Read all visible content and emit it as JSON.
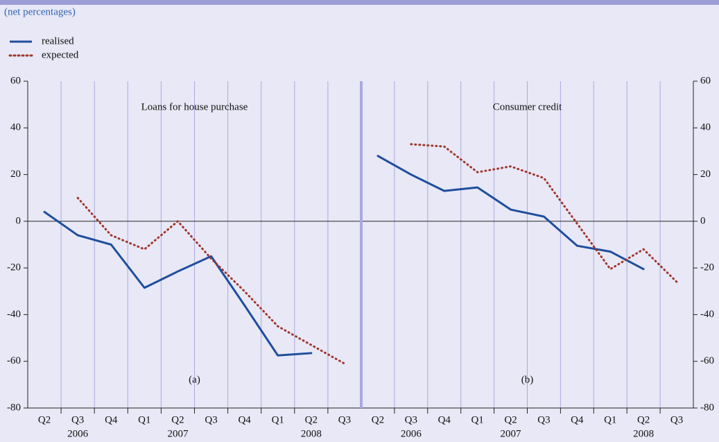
{
  "subtitle": "(net percentages)",
  "chart_data": [
    {
      "type": "line",
      "title": "Loans for house purchase",
      "panel_label": "(a)",
      "categories": [
        "Q2",
        "Q3",
        "Q4",
        "Q1",
        "Q2",
        "Q3",
        "Q4",
        "Q1",
        "Q2",
        "Q3"
      ],
      "years": [
        null,
        "2006",
        null,
        null,
        "2007",
        null,
        null,
        null,
        "2008",
        null
      ],
      "ylim": [
        -80,
        60
      ],
      "yticks": [
        -80,
        -60,
        -40,
        -20,
        0,
        20,
        40,
        60
      ],
      "y_axis": "left",
      "series": [
        {
          "name": "realised",
          "color": "#1f4e9c",
          "style": "solid",
          "values": [
            4,
            -6,
            -10,
            -28.5,
            -21.5,
            -15,
            -36,
            -57.5,
            -56.5,
            null
          ]
        },
        {
          "name": "expected",
          "color": "#a0352a",
          "style": "dotted",
          "values": [
            null,
            10,
            -6,
            -12,
            0,
            -16,
            -30,
            -45,
            -53,
            -61
          ]
        }
      ]
    },
    {
      "type": "line",
      "title": "Consumer credit",
      "panel_label": "(b)",
      "categories": [
        "Q2",
        "Q3",
        "Q4",
        "Q1",
        "Q2",
        "Q3",
        "Q4",
        "Q1",
        "Q2",
        "Q3"
      ],
      "years": [
        null,
        "2006",
        null,
        null,
        "2007",
        null,
        null,
        null,
        "2008",
        null
      ],
      "ylim": [
        -80,
        60
      ],
      "yticks": [
        -80,
        -60,
        -40,
        -20,
        0,
        20,
        40,
        60
      ],
      "y_axis": "right",
      "series": [
        {
          "name": "realised",
          "color": "#1f4e9c",
          "style": "solid",
          "values": [
            28,
            20,
            13,
            14.5,
            5,
            2,
            -10.5,
            -13,
            -20.5,
            null
          ]
        },
        {
          "name": "expected",
          "color": "#a0352a",
          "style": "dotted",
          "values": [
            null,
            33,
            32,
            21,
            23.5,
            18.5,
            -1,
            -20.5,
            -12,
            -26
          ]
        }
      ]
    }
  ]
}
